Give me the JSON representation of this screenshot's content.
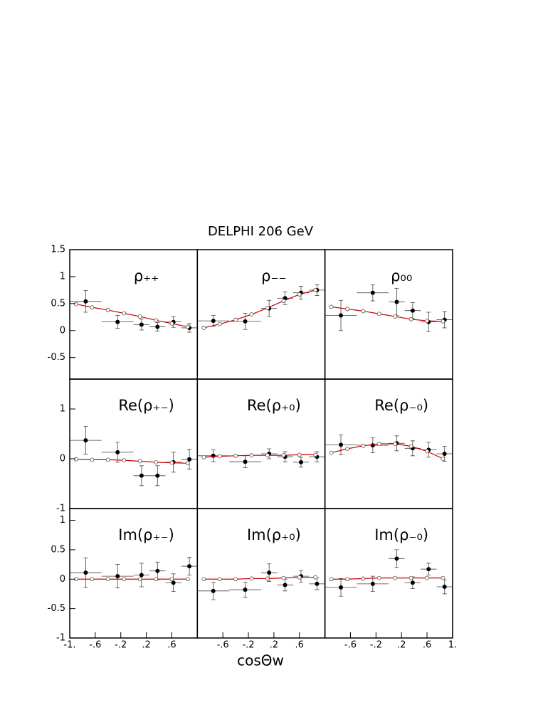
{
  "figure": {
    "title": "DELPHI 206 GeV",
    "x_label": "cosΘw"
  },
  "chart_data": [
    {
      "type": "scatter",
      "title": "ρ₊₊",
      "xlim": [
        -1,
        1
      ],
      "ylim": [
        -0.9,
        1.5
      ],
      "yticks": [
        1.5,
        1,
        0.5,
        0,
        -0.5
      ],
      "series": [
        {
          "color": "#000000",
          "marker": "filled",
          "x": [
            -0.75,
            -0.25,
            0.125,
            0.375,
            0.625,
            0.875
          ],
          "xerr": [
            0.25,
            0.25,
            0.125,
            0.125,
            0.125,
            0.125
          ],
          "values": [
            0.54,
            0.16,
            0.11,
            0.07,
            0.16,
            0.05
          ],
          "yerr": [
            0.2,
            0.12,
            0.1,
            0.08,
            0.1,
            0.08
          ]
        },
        {
          "color": "#cc0000",
          "marker": "open",
          "x": [
            -0.9,
            -0.65,
            -0.4,
            -0.15,
            0.1,
            0.35,
            0.6,
            0.85
          ],
          "values": [
            0.49,
            0.43,
            0.38,
            0.32,
            0.26,
            0.19,
            0.13,
            0.07
          ]
        }
      ]
    },
    {
      "type": "scatter",
      "title": "ρ₋₋",
      "xlim": [
        -1,
        1
      ],
      "ylim": [
        -0.9,
        1.5
      ],
      "series": [
        {
          "color": "#000000",
          "marker": "filled",
          "x": [
            -0.75,
            -0.25,
            0.125,
            0.375,
            0.625,
            0.875
          ],
          "xerr": [
            0.25,
            0.25,
            0.125,
            0.125,
            0.125,
            0.125
          ],
          "values": [
            0.18,
            0.17,
            0.41,
            0.6,
            0.7,
            0.75
          ],
          "yerr": [
            0.1,
            0.15,
            0.15,
            0.12,
            0.12,
            0.1
          ]
        },
        {
          "color": "#cc0000",
          "marker": "open",
          "x": [
            -0.9,
            -0.65,
            -0.4,
            -0.15,
            0.1,
            0.35,
            0.6,
            0.85
          ],
          "values": [
            0.05,
            0.12,
            0.2,
            0.3,
            0.42,
            0.55,
            0.67,
            0.75
          ]
        }
      ]
    },
    {
      "type": "scatter",
      "title": "ρ₀₀",
      "xlim": [
        -1,
        1
      ],
      "ylim": [
        -0.9,
        1.5
      ],
      "series": [
        {
          "color": "#000000",
          "marker": "filled",
          "x": [
            -0.75,
            -0.25,
            0.125,
            0.375,
            0.625,
            0.875
          ],
          "xerr": [
            0.25,
            0.25,
            0.125,
            0.125,
            0.125,
            0.125
          ],
          "values": [
            0.28,
            0.7,
            0.53,
            0.37,
            0.16,
            0.2
          ],
          "yerr": [
            0.28,
            0.15,
            0.25,
            0.15,
            0.18,
            0.15
          ]
        },
        {
          "color": "#cc0000",
          "marker": "open",
          "x": [
            -0.9,
            -0.65,
            -0.4,
            -0.15,
            0.1,
            0.35,
            0.6,
            0.85
          ],
          "values": [
            0.44,
            0.4,
            0.36,
            0.31,
            0.26,
            0.21,
            0.18,
            0.17
          ]
        }
      ]
    },
    {
      "type": "scatter",
      "title": "Re(ρ₊₋)",
      "xlim": [
        -1,
        1
      ],
      "ylim": [
        -1,
        1.6
      ],
      "yticks": [
        1,
        0,
        -1
      ],
      "series": [
        {
          "color": "#000000",
          "marker": "filled",
          "x": [
            -0.75,
            -0.25,
            0.125,
            0.375,
            0.625,
            0.875
          ],
          "xerr": [
            0.25,
            0.25,
            0.125,
            0.125,
            0.125,
            0.125
          ],
          "values": [
            0.37,
            0.13,
            -0.34,
            -0.34,
            -0.07,
            -0.01
          ],
          "yerr": [
            0.28,
            0.2,
            0.2,
            0.2,
            0.2,
            0.2
          ]
        },
        {
          "color": "#cc0000",
          "marker": "open",
          "x": [
            -0.9,
            -0.65,
            -0.4,
            -0.15,
            0.1,
            0.35,
            0.6,
            0.85
          ],
          "values": [
            -0.01,
            -0.02,
            -0.02,
            -0.03,
            -0.05,
            -0.07,
            -0.08,
            -0.09
          ]
        }
      ]
    },
    {
      "type": "scatter",
      "title": "Re(ρ₊₀)",
      "xlim": [
        -1,
        1
      ],
      "ylim": [
        -1,
        1.6
      ],
      "series": [
        {
          "color": "#000000",
          "marker": "filled",
          "x": [
            -0.75,
            -0.25,
            0.125,
            0.375,
            0.625,
            0.875
          ],
          "xerr": [
            0.25,
            0.25,
            0.125,
            0.125,
            0.125,
            0.125
          ],
          "values": [
            0.06,
            -0.06,
            0.1,
            0.04,
            -0.07,
            0.04
          ],
          "yerr": [
            0.12,
            0.12,
            0.1,
            0.1,
            0.1,
            0.1
          ]
        },
        {
          "color": "#cc0000",
          "marker": "open",
          "x": [
            -0.9,
            -0.65,
            -0.4,
            -0.15,
            0.1,
            0.35,
            0.6,
            0.85
          ],
          "values": [
            0.03,
            0.05,
            0.06,
            0.07,
            0.07,
            0.07,
            0.08,
            0.08
          ]
        }
      ]
    },
    {
      "type": "scatter",
      "title": "Re(ρ₋₀)",
      "xlim": [
        -1,
        1
      ],
      "ylim": [
        -1,
        1.6
      ],
      "series": [
        {
          "color": "#000000",
          "marker": "filled",
          "x": [
            -0.75,
            -0.25,
            0.125,
            0.375,
            0.625,
            0.875
          ],
          "xerr": [
            0.25,
            0.25,
            0.125,
            0.125,
            0.125,
            0.125
          ],
          "values": [
            0.28,
            0.27,
            0.31,
            0.21,
            0.18,
            0.1
          ],
          "yerr": [
            0.2,
            0.15,
            0.15,
            0.15,
            0.15,
            0.15
          ]
        },
        {
          "color": "#cc0000",
          "marker": "open",
          "x": [
            -0.9,
            -0.65,
            -0.4,
            -0.15,
            0.1,
            0.35,
            0.6,
            0.85
          ],
          "values": [
            0.12,
            0.2,
            0.26,
            0.3,
            0.3,
            0.25,
            0.15,
            0.0
          ]
        }
      ]
    },
    {
      "type": "scatter",
      "title": "Im(ρ₊₋)",
      "xlim": [
        -1,
        1
      ],
      "ylim": [
        -1,
        1.2
      ],
      "yticks": [
        1,
        0.5,
        0,
        -0.5,
        -1
      ],
      "xticks": [
        {
          "value": -1,
          "label": "-1."
        },
        {
          "value": -0.6,
          "label": "-.6"
        },
        {
          "value": -0.2,
          "label": "-.2"
        },
        {
          "value": 0.2,
          "label": ".2"
        },
        {
          "value": 0.6,
          "label": ".6"
        }
      ],
      "series": [
        {
          "color": "#000000",
          "marker": "filled",
          "x": [
            -0.75,
            -0.25,
            0.125,
            0.375,
            0.625,
            0.875
          ],
          "xerr": [
            0.25,
            0.25,
            0.125,
            0.125,
            0.125,
            0.125
          ],
          "values": [
            0.11,
            0.05,
            0.07,
            0.14,
            -0.06,
            0.22
          ],
          "yerr": [
            0.25,
            0.2,
            0.2,
            0.15,
            0.15,
            0.15
          ]
        },
        {
          "color": "#cc0000",
          "marker": "open",
          "x": [
            -0.9,
            -0.65,
            -0.4,
            -0.15,
            0.1,
            0.35,
            0.6,
            0.85
          ],
          "values": [
            0.0,
            0.0,
            0.0,
            0.0,
            0.0,
            0.0,
            0.0,
            0.0
          ]
        }
      ]
    },
    {
      "type": "scatter",
      "title": "Im(ρ₊₀)",
      "xlim": [
        -1,
        1
      ],
      "ylim": [
        -1,
        1.2
      ],
      "xticks": [
        {
          "value": -0.6,
          "label": "-.6"
        },
        {
          "value": -0.2,
          "label": "-.2"
        },
        {
          "value": 0.2,
          "label": ".2"
        },
        {
          "value": 0.6,
          "label": ".6"
        }
      ],
      "series": [
        {
          "color": "#000000",
          "marker": "filled",
          "x": [
            -0.75,
            -0.25,
            0.125,
            0.375,
            0.625,
            0.875
          ],
          "xerr": [
            0.25,
            0.25,
            0.125,
            0.125,
            0.125,
            0.125
          ],
          "values": [
            -0.2,
            -0.18,
            0.11,
            -0.1,
            0.05,
            -0.08
          ],
          "yerr": [
            0.15,
            0.13,
            0.15,
            0.1,
            0.1,
            0.1
          ]
        },
        {
          "color": "#cc0000",
          "marker": "open",
          "x": [
            -0.9,
            -0.65,
            -0.4,
            -0.15,
            0.1,
            0.35,
            0.6,
            0.85
          ],
          "values": [
            0.0,
            0.0,
            0.0,
            0.01,
            0.01,
            0.02,
            0.03,
            0.03
          ]
        }
      ]
    },
    {
      "type": "scatter",
      "title": "Im(ρ₋₀)",
      "xlim": [
        -1,
        1
      ],
      "ylim": [
        -1,
        1.2
      ],
      "xticks": [
        {
          "value": -0.6,
          "label": "-.6"
        },
        {
          "value": -0.2,
          "label": "-.2"
        },
        {
          "value": 0.2,
          "label": ".2"
        },
        {
          "value": 0.6,
          "label": ".6"
        },
        {
          "value": 1,
          "label": "1."
        }
      ],
      "series": [
        {
          "color": "#000000",
          "marker": "filled",
          "x": [
            -0.75,
            -0.25,
            0.125,
            0.375,
            0.625,
            0.875
          ],
          "xerr": [
            0.25,
            0.25,
            0.125,
            0.125,
            0.125,
            0.125
          ],
          "values": [
            -0.14,
            -0.08,
            0.35,
            -0.06,
            0.17,
            -0.13
          ],
          "yerr": [
            0.15,
            0.13,
            0.15,
            0.1,
            0.1,
            0.12
          ]
        },
        {
          "color": "#cc0000",
          "marker": "open",
          "x": [
            -0.9,
            -0.65,
            -0.4,
            -0.15,
            0.1,
            0.35,
            0.6,
            0.85
          ],
          "values": [
            0.0,
            0.0,
            0.01,
            0.02,
            0.02,
            0.02,
            0.02,
            0.02
          ]
        }
      ]
    }
  ]
}
